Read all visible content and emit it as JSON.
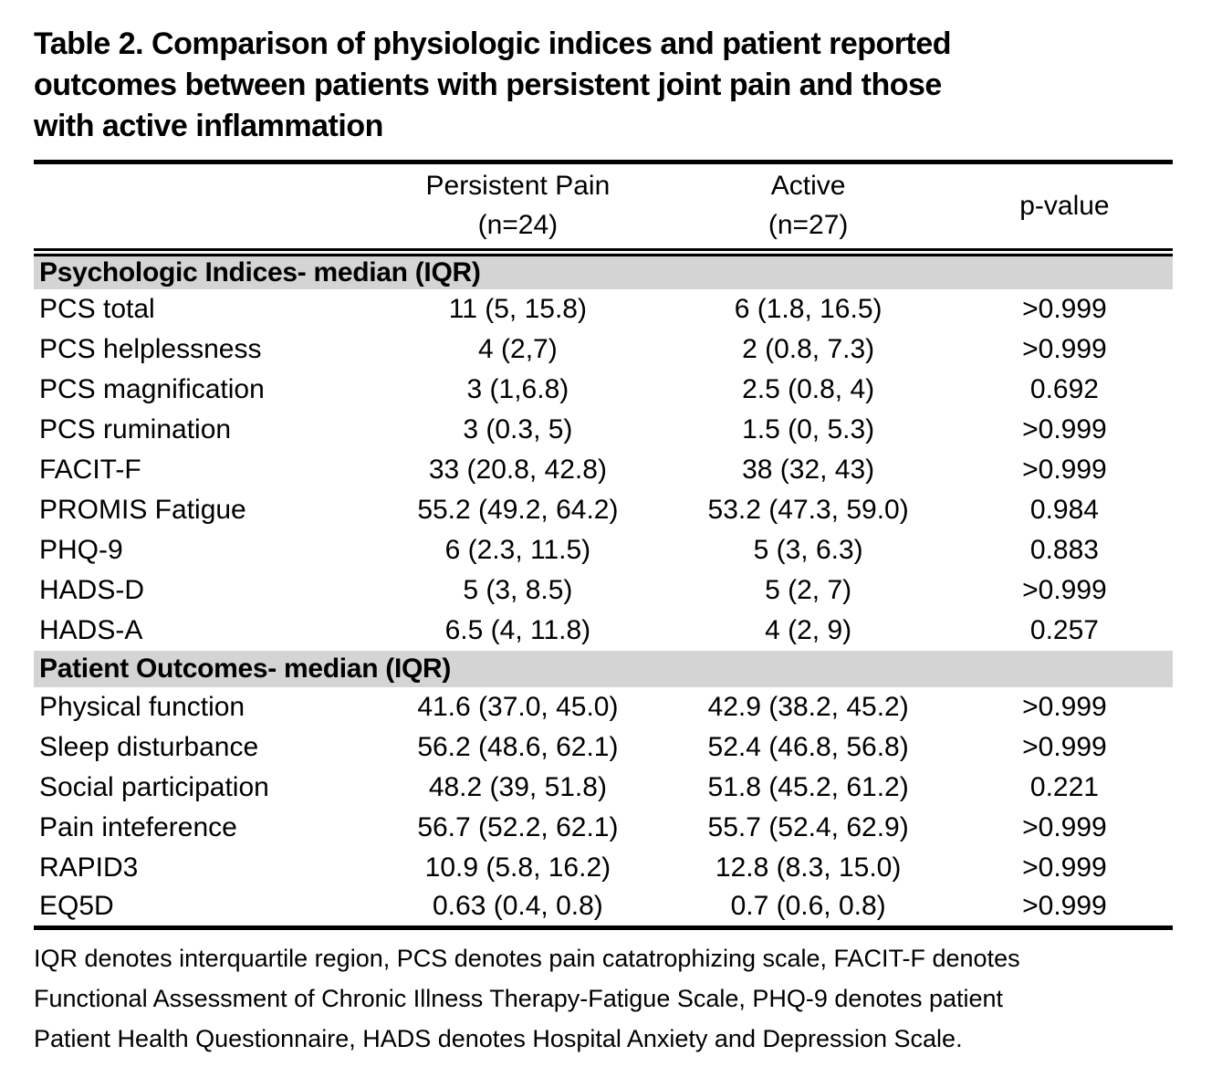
{
  "title_lines": [
    "Table 2. Comparison of physiologic indices and patient reported",
    "outcomes between patients with persistent joint pain and those",
    "with active inflammation"
  ],
  "colors": {
    "section_band": "#d4d4d4",
    "text": "#000000",
    "background": "#ffffff",
    "rule": "#000000"
  },
  "table": {
    "header": {
      "persistent_pain": {
        "line1": "Persistent Pain",
        "line2": "(n=24)"
      },
      "active": {
        "line1": "Active",
        "line2": "(n=27)"
      },
      "p_value": "p-value"
    },
    "sections": [
      {
        "label": "Psychologic Indices- median (IQR)",
        "rows": [
          {
            "label": "PCS total",
            "persistent_pain": "11 (5, 15.8)",
            "active": "6 (1.8, 16.5)",
            "p_value": ">0.999"
          },
          {
            "label": "PCS helplessness",
            "persistent_pain": "4 (2,7)",
            "active": "2 (0.8, 7.3)",
            "p_value": ">0.999"
          },
          {
            "label": "PCS magnification",
            "persistent_pain": "3 (1,6.8)",
            "active": "2.5 (0.8, 4)",
            "p_value": "0.692"
          },
          {
            "label": "PCS rumination",
            "persistent_pain": "3 (0.3, 5)",
            "active": "1.5 (0, 5.3)",
            "p_value": ">0.999"
          },
          {
            "label": "FACIT-F",
            "persistent_pain": "33 (20.8, 42.8)",
            "active": "38 (32, 43)",
            "p_value": ">0.999"
          },
          {
            "label": "PROMIS Fatigue",
            "persistent_pain": "55.2 (49.2, 64.2)",
            "active": "53.2 (47.3, 59.0)",
            "p_value": "0.984"
          },
          {
            "label": "PHQ-9",
            "persistent_pain": "6 (2.3, 11.5)",
            "active": "5 (3, 6.3)",
            "p_value": "0.883"
          },
          {
            "label": "HADS-D",
            "persistent_pain": "5 (3, 8.5)",
            "active": "5 (2, 7)",
            "p_value": ">0.999"
          },
          {
            "label": "HADS-A",
            "persistent_pain": "6.5 (4, 11.8)",
            "active": "4 (2, 9)",
            "p_value": "0.257"
          }
        ]
      },
      {
        "label": "Patient Outcomes- median (IQR)",
        "rows": [
          {
            "label": "Physical function",
            "persistent_pain": "41.6 (37.0, 45.0)",
            "active": "42.9 (38.2, 45.2)",
            "p_value": ">0.999"
          },
          {
            "label": "Sleep disturbance",
            "persistent_pain": "56.2 (48.6, 62.1)",
            "active": "52.4 (46.8, 56.8)",
            "p_value": ">0.999"
          },
          {
            "label": "Social participation",
            "persistent_pain": "48.2 (39, 51.8)",
            "active": "51.8 (45.2, 61.2)",
            "p_value": "0.221"
          },
          {
            "label": "Pain inteference",
            "persistent_pain": "56.7 (52.2, 62.1)",
            "active": "55.7 (52.4, 62.9)",
            "p_value": ">0.999"
          },
          {
            "label": "RAPID3",
            "persistent_pain": "10.9 (5.8, 16.2)",
            "active": "12.8 (8.3, 15.0)",
            "p_value": ">0.999"
          },
          {
            "label": "EQ5D",
            "persistent_pain": "0.63 (0.4, 0.8)",
            "active": "0.7 (0.6, 0.8)",
            "p_value": ">0.999"
          }
        ]
      }
    ]
  },
  "footnote_lines": [
    "IQR denotes interquartile region, PCS denotes pain catatrophizing scale, FACIT-F denotes",
    "Functional Assessment of Chronic Illness Therapy-Fatigue Scale, PHQ-9 denotes patient",
    "Patient Health Questionnaire, HADS denotes Hospital Anxiety and Depression Scale."
  ]
}
